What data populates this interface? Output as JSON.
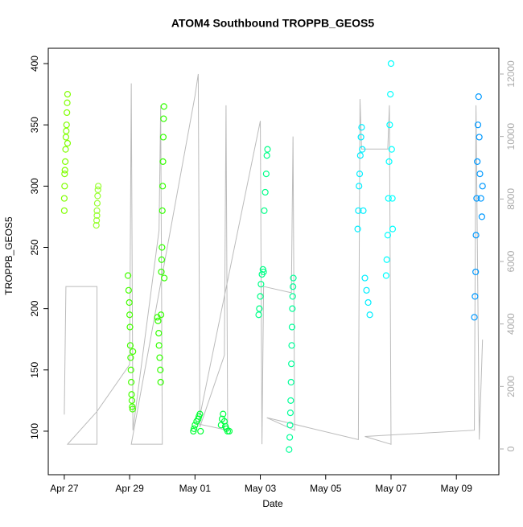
{
  "chart_data": {
    "type": "scatter",
    "title": "ATOM4 Southbound TROPPB_GEOS5",
    "x_label": "Date",
    "y_label": "TROPPB_GEOS5",
    "xlim": [
      -0.49,
      13.3
    ],
    "ylim": [
      64.5,
      412.5
    ],
    "y2lim": [
      -824,
      12824
    ],
    "xticks": [
      {
        "value": 0,
        "label": "Apr 27"
      },
      {
        "value": 2,
        "label": "Apr 29"
      },
      {
        "value": 4,
        "label": "May 01"
      },
      {
        "value": 6,
        "label": "May 03"
      },
      {
        "value": 8,
        "label": "May 05"
      },
      {
        "value": 10,
        "label": "May 07"
      },
      {
        "value": 12,
        "label": "May 09"
      }
    ],
    "yticks": [
      100,
      150,
      200,
      250,
      300,
      350,
      400
    ],
    "y2ticks": [
      0,
      2000,
      4000,
      6000,
      8000,
      10000,
      12000
    ],
    "grid": false,
    "series": [
      {
        "color": "#80ff00",
        "x": [
          0.0,
          0.0,
          0.01,
          0.01,
          0.02,
          0.03,
          0.04,
          0.05,
          0.06,
          0.07,
          0.08,
          0.09,
          0.1,
          0.1
        ],
        "values": [
          280,
          290,
          300,
          310,
          313,
          320,
          330,
          340,
          345,
          350,
          360,
          368,
          375,
          335
        ]
      },
      {
        "color": "#99ff33",
        "x": [
          0.98,
          0.99,
          1.0,
          1.0,
          1.01,
          1.02,
          1.03,
          1.04
        ],
        "values": [
          268,
          272,
          276,
          280,
          286,
          292,
          297,
          300
        ]
      },
      {
        "color": "#44ff00",
        "x": [
          1.95,
          1.97,
          1.99,
          2.0,
          2.01,
          2.02,
          2.03,
          2.04,
          2.05,
          2.06,
          2.07,
          2.08,
          2.09,
          2.1
        ],
        "values": [
          227,
          215,
          205,
          195,
          185,
          170,
          160,
          150,
          140,
          130,
          125,
          120,
          118,
          165
        ]
      },
      {
        "color": "#33ff00",
        "x": [
          2.85,
          2.87,
          2.89,
          2.9,
          2.92,
          2.94,
          2.95,
          2.96,
          2.97,
          2.98,
          2.99,
          3.0,
          3.01,
          3.02,
          3.03,
          3.04,
          3.05,
          3.06
        ],
        "values": [
          193,
          190,
          180,
          170,
          160,
          150,
          140,
          195,
          230,
          240,
          250,
          280,
          300,
          320,
          340,
          355,
          365,
          225
        ]
      },
      {
        "color": "#00ff33",
        "x": [
          3.95,
          3.97,
          4.0,
          4.05,
          4.1,
          4.12,
          4.15,
          4.17
        ],
        "values": [
          100,
          102,
          105,
          108,
          110,
          112,
          114,
          100
        ]
      },
      {
        "color": "#00ff44",
        "x": [
          4.8,
          4.83,
          4.86,
          4.9,
          4.93,
          4.96,
          5.0,
          5.05
        ],
        "values": [
          105,
          110,
          114,
          108,
          104,
          102,
          100,
          100
        ]
      },
      {
        "color": "#00ff88",
        "x": [
          5.95,
          5.97,
          6.0,
          6.02,
          6.05,
          6.08,
          6.1,
          6.12,
          6.15,
          6.18,
          6.2,
          6.22
        ],
        "values": [
          195,
          200,
          210,
          220,
          228,
          232,
          230,
          280,
          295,
          310,
          325,
          330
        ]
      },
      {
        "color": "#00ff99",
        "x": [
          6.88,
          6.9,
          6.91,
          6.92,
          6.93,
          6.94,
          6.95,
          6.96,
          6.97,
          6.98,
          6.99,
          7.0,
          7.01
        ],
        "values": [
          85,
          95,
          105,
          115,
          125,
          140,
          155,
          170,
          185,
          200,
          210,
          218,
          225
        ]
      },
      {
        "color": "#00eeff",
        "x": [
          8.98,
          9.0,
          9.02,
          9.04,
          9.06,
          9.08,
          9.1,
          9.12,
          9.15,
          9.2,
          9.25,
          9.3,
          9.35
        ],
        "values": [
          265,
          280,
          300,
          310,
          325,
          340,
          348,
          330,
          280,
          225,
          215,
          205,
          195
        ]
      },
      {
        "color": "#00ffff",
        "x": [
          9.85,
          9.87,
          9.9,
          9.92,
          9.94,
          9.96,
          9.98,
          10.0,
          10.02,
          10.04,
          10.05
        ],
        "values": [
          227,
          240,
          260,
          290,
          320,
          350,
          375,
          400,
          330,
          290,
          265
        ]
      },
      {
        "color": "#0099ff",
        "x": [
          12.55,
          12.57,
          12.59,
          12.6,
          12.62,
          12.64,
          12.66,
          12.68,
          12.7,
          12.72,
          12.75,
          12.78,
          12.8
        ],
        "values": [
          193,
          210,
          230,
          260,
          290,
          320,
          350,
          373,
          340,
          310,
          290,
          275,
          300
        ]
      },
      {
        "type": "line",
        "axis": "y2",
        "color": "#bbbbbb",
        "x": [
          0.0,
          0.05,
          1.0,
          1.0,
          0.1,
          1.0,
          2.0,
          2.05,
          2.1,
          2.9,
          2.95,
          3.0,
          2.05,
          4.0,
          4.1,
          4.15,
          4.9,
          4.95,
          5.0,
          4.1,
          6.0,
          6.05,
          6.1,
          6.95,
          7.0,
          7.05,
          6.2,
          9.0,
          9.05,
          9.1,
          9.9,
          9.95,
          10.0,
          9.2,
          12.55,
          12.6,
          12.7,
          12.8
        ],
        "values": [
          1100,
          5200,
          5200,
          150,
          150,
          1200,
          2700,
          11700,
          600,
          7000,
          11000,
          150,
          150,
          11300,
          12000,
          700,
          3000,
          11000,
          600,
          800,
          10500,
          150,
          5200,
          5000,
          10000,
          600,
          1000,
          300,
          11200,
          9600,
          9600,
          11000,
          150,
          400,
          600,
          11000,
          300,
          3500
        ]
      }
    ]
  }
}
